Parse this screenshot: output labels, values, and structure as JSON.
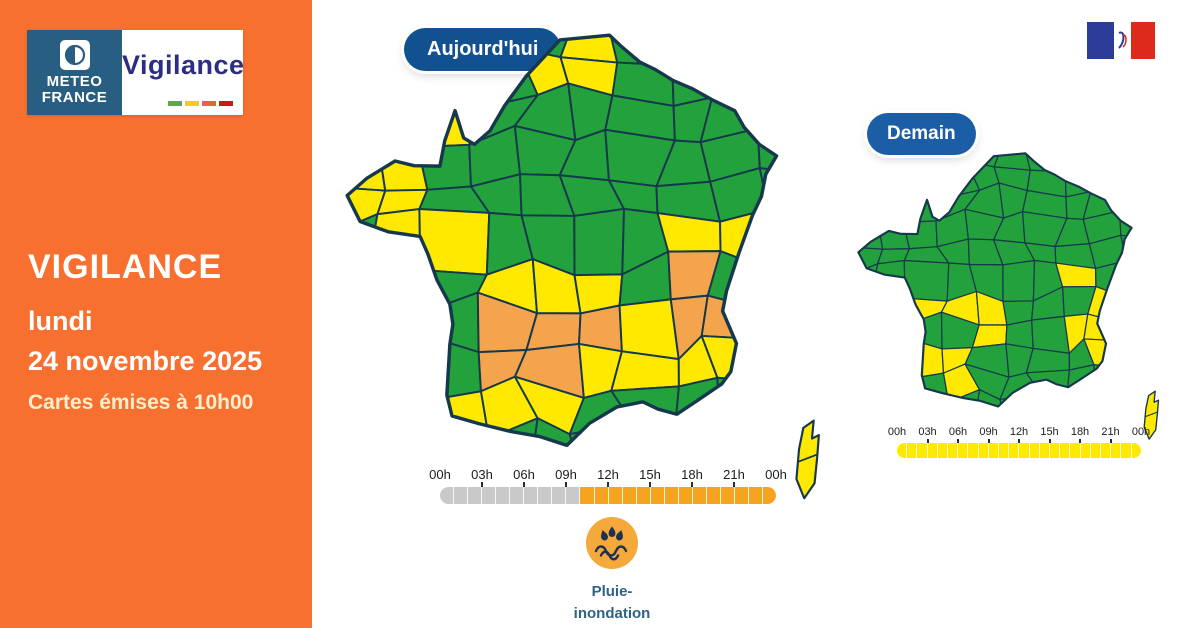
{
  "sidebar": {
    "title": "VIGILANCE",
    "weekday": "lundi",
    "date": "24 novembre 2025",
    "issued_note": "Cartes émises à 10h00",
    "bg_color": "#F8702F"
  },
  "brand": {
    "meteo_line1": "METEO",
    "meteo_line2": "FRANCE",
    "product": "Vigilance",
    "box_blue": "#275E81",
    "wordmark_navy": "#2B2E83",
    "level_bars": [
      "#5FA845",
      "#F2CE1B",
      "#E8623D",
      "#C91A1A"
    ]
  },
  "levels": {
    "green": "#23A13C",
    "yellow": "#FFE900",
    "orange": "#F4A44C",
    "border": "#16384C"
  },
  "maps": {
    "today": {
      "badge": "Aujourd'hui",
      "corsica_level": "yellow",
      "zones": [
        {
          "level": "yellow",
          "areas": [
            [
              55,
              10,
              9
            ],
            [
              27,
              26,
              7
            ],
            [
              8,
              40,
              12
            ],
            [
              17,
              45,
              6
            ],
            [
              27,
              54,
              5.5
            ],
            [
              35,
              60,
              6
            ],
            [
              46,
              62,
              6.5
            ],
            [
              56,
              64,
              6
            ],
            [
              65,
              70,
              6
            ],
            [
              86,
              46,
              8
            ],
            [
              94,
              51,
              6
            ],
            [
              95,
              70,
              7
            ],
            [
              78,
              80,
              8
            ],
            [
              88,
              84,
              7
            ],
            [
              32,
              88,
              9
            ],
            [
              44,
              90,
              6
            ],
            [
              54,
              84,
              6
            ]
          ]
        },
        {
          "level": "orange",
          "areas": [
            [
              35,
              72,
              6
            ],
            [
              47,
              70,
              6
            ],
            [
              55,
              70,
              5
            ],
            [
              34,
              79,
              6
            ],
            [
              45,
              77,
              6
            ],
            [
              80,
              63,
              7
            ],
            [
              87,
              70,
              7
            ]
          ]
        }
      ],
      "timeline": {
        "labels": [
          "00h",
          "03h",
          "06h",
          "09h",
          "12h",
          "15h",
          "18h",
          "21h",
          "00h"
        ],
        "segment_count": 24,
        "inactive_count": 10,
        "inactive_color": "#C9C9C9",
        "active_color": "#F6A41F"
      }
    },
    "tomorrow": {
      "badge": "Demain",
      "corsica_level": "yellow",
      "zones": [
        {
          "level": "yellow",
          "areas": [
            [
              78,
              50,
              8
            ],
            [
              88,
              57,
              7
            ],
            [
              84,
              70,
              8
            ],
            [
              88,
              80,
              6
            ],
            [
              33,
              62,
              8
            ],
            [
              49,
              70,
              8
            ],
            [
              33,
              82,
              9
            ]
          ]
        }
      ],
      "timeline": {
        "labels": [
          "00h",
          "03h",
          "06h",
          "09h",
          "12h",
          "15h",
          "18h",
          "21h",
          "00h"
        ],
        "segment_count": 24,
        "inactive_count": 0,
        "inactive_color": "#C9C9C9",
        "active_color": "#FFE900"
      }
    }
  },
  "phenomenon": {
    "icon": "rain-flood-icon",
    "icon_bg": "#F5A93B",
    "icon_ink": "#1E3250",
    "label_line1": "Pluie-",
    "label_line2": "inondation"
  },
  "gov_logo": {
    "blue": "#2B3B97",
    "red": "#DD2A1B"
  }
}
